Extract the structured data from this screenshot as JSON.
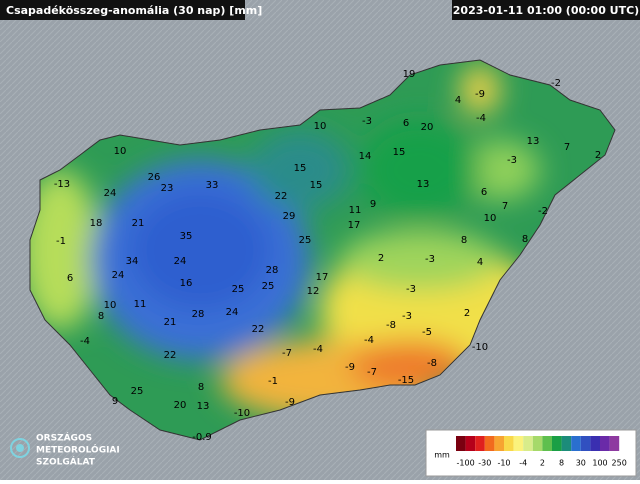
{
  "header": {
    "title": "Csapadékösszeg-anomália (30 nap) [mm]",
    "timestamp": "2023-01-11 01:00 (00:00 UTC)"
  },
  "stations": [
    19,
    4,
    -9,
    -2,
    -3,
    10,
    6,
    20,
    -4,
    13,
    7,
    2,
    10,
    15,
    14,
    15,
    -3,
    -13,
    26,
    33,
    15,
    13,
    24,
    23,
    22,
    9,
    6,
    7,
    18,
    21,
    29,
    11,
    -2,
    10,
    17,
    -1,
    35,
    25,
    8,
    8,
    34,
    24,
    2,
    -3,
    4,
    6,
    24,
    28,
    17,
    16,
    25,
    25,
    12,
    -3,
    10,
    11,
    2,
    8,
    28,
    24,
    21,
    -8,
    -3,
    -5,
    22,
    -4,
    -4,
    -10,
    -7,
    -4,
    22,
    -9,
    -7,
    -8,
    -15,
    25,
    8,
    -1,
    9,
    20,
    13,
    -9,
    -10,
    -0.9
  ],
  "legend": {
    "unit": "mm",
    "labels": [
      -100,
      -30,
      -10,
      -4,
      2,
      8,
      30,
      100,
      250
    ]
  },
  "logo": [
    "ORSZÁGOS",
    "METEOROLÓGIAI",
    "SZOLGÁLAT"
  ]
}
